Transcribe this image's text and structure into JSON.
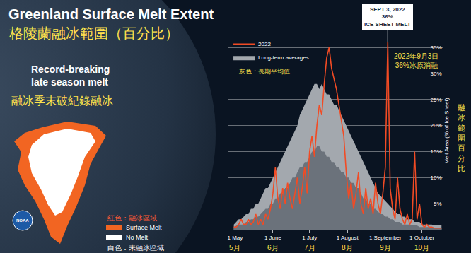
{
  "chart_data": {
    "type": "line",
    "title": "Greenland Surface Melt Extent",
    "subtitle": "格陵蘭融冰範圍（百分比）",
    "headline": [
      "Record-breaking",
      "late season melt"
    ],
    "headline_zh": "融冰季末破紀錄融冰",
    "y_label": "Melt Area (% of Ice Sheet)",
    "y_label_zh": "融冰範圍百分比",
    "legend_note": "灰色：長期平均值",
    "callout": {
      "x": 246,
      "y": 36,
      "lines": [
        "SEPT 3, 2022",
        "36%",
        "ICE SHEET MELT"
      ]
    },
    "callout_zh": {
      "x": 269,
      "y": 32.4,
      "lines": [
        "2022年9月3日",
        "36%冰原消融"
      ]
    },
    "x": [
      120,
      122,
      124,
      126,
      128,
      130,
      132,
      134,
      136,
      138,
      140,
      142,
      144,
      146,
      148,
      150,
      152,
      154,
      156,
      158,
      160,
      162,
      164,
      166,
      168,
      170,
      172,
      174,
      176,
      178,
      180,
      182,
      184,
      186,
      188,
      190,
      192,
      194,
      196,
      198,
      200,
      202,
      204,
      206,
      208,
      210,
      212,
      214,
      216,
      218,
      220,
      222,
      224,
      226,
      228,
      230,
      232,
      234,
      236,
      238,
      240,
      242,
      244,
      246,
      248,
      250,
      252,
      254,
      256,
      258,
      260,
      262,
      264,
      266,
      268,
      270,
      272,
      274,
      276,
      278,
      280,
      282,
      284,
      286,
      288,
      290
    ],
    "series": [
      {
        "name": "2022",
        "color": "#f24b24",
        "type": "line",
        "values": [
          0.5,
          0.5,
          1,
          2,
          1,
          1,
          2,
          1,
          1.5,
          3,
          1,
          2,
          1,
          3,
          2,
          4,
          7,
          12,
          6,
          4,
          8,
          5,
          9,
          6,
          4,
          7,
          10,
          5,
          8,
          12,
          7,
          15,
          18,
          14,
          20,
          24,
          22,
          28,
          33,
          35,
          31,
          29,
          27,
          24,
          21,
          18,
          11,
          6,
          9,
          4,
          7,
          11,
          5,
          3,
          8,
          4,
          6,
          3,
          9,
          5,
          3,
          7,
          12,
          36,
          8,
          4,
          2,
          10,
          4,
          2,
          1,
          3,
          1,
          2,
          15,
          2,
          5,
          1,
          0.5,
          1,
          0.5,
          0.5,
          0.3,
          0.3,
          0.3,
          0.3
        ]
      },
      {
        "name": "Long-term averages",
        "color": "#a3a8ae",
        "type": "area",
        "values": [
          1,
          1.5,
          2,
          2,
          2.5,
          3,
          3,
          4,
          4,
          5,
          5,
          6,
          7,
          8,
          8,
          9,
          10,
          11,
          12,
          13,
          14,
          15,
          16,
          17,
          18,
          19,
          20,
          22,
          23,
          24,
          25,
          26,
          27,
          28,
          28,
          27,
          28,
          27,
          26,
          26,
          25,
          24,
          24,
          23,
          22,
          21,
          20,
          19,
          18,
          17,
          16,
          15,
          14,
          13,
          12,
          11,
          10,
          9,
          8,
          7,
          6.5,
          6,
          5.5,
          5,
          4.5,
          4,
          3.5,
          3,
          3,
          2.5,
          2.5,
          2,
          2,
          2,
          1.5,
          1.5,
          1.5,
          1,
          1,
          1,
          1,
          1,
          0.8,
          0.8,
          0.8,
          0.8
        ]
      },
      {
        "color": "#6b727b",
        "type": "area",
        "values": [
          0.5,
          0.7,
          1,
          1,
          1,
          1.5,
          1.5,
          2,
          2,
          2.5,
          2.5,
          3,
          3.5,
          4,
          4,
          5,
          5,
          6,
          6,
          7,
          7,
          8,
          8,
          9,
          10,
          10,
          11,
          12,
          12,
          13,
          13,
          14,
          15,
          15,
          16,
          16,
          15,
          15,
          14,
          14,
          13,
          13,
          12,
          12,
          11,
          11,
          10,
          10,
          9,
          9,
          8,
          8,
          7,
          6,
          6,
          5,
          5,
          4,
          4,
          3.5,
          3,
          3,
          2.5,
          2.5,
          2,
          2,
          1.5,
          1.5,
          1.5,
          1,
          1,
          1,
          1,
          0.8,
          0.8,
          0.8,
          0.5,
          0.5,
          0.5,
          0.5,
          0.5,
          0.5,
          0.3,
          0.3,
          0.3,
          0.3
        ]
      }
    ],
    "xlim": [
      115,
      291
    ],
    "xticks": [
      {
        "value": 121,
        "label": "1 May"
      },
      {
        "value": 152,
        "label": "1 June"
      },
      {
        "value": 182,
        "label": "1 July"
      },
      {
        "value": 213,
        "label": "1 August"
      },
      {
        "value": 244,
        "label": "1 September"
      },
      {
        "value": 274,
        "label": "1 October"
      }
    ],
    "x_labels_zh": [
      "5月",
      "6月",
      "7月",
      "8月",
      "9月",
      "10月"
    ],
    "ylim": [
      0,
      38
    ],
    "yticks": [
      {
        "value": 5,
        "label": "5%"
      },
      {
        "value": 10,
        "label": "10%"
      },
      {
        "value": 15,
        "label": "15%"
      },
      {
        "value": 20,
        "label": "20%"
      },
      {
        "value": 25,
        "label": "25%"
      },
      {
        "value": 30,
        "label": "30%"
      },
      {
        "value": 35,
        "label": "35%"
      }
    ],
    "grid": true,
    "legend": "upper left",
    "map_legend": {
      "note_zh": "紅色：融冰區域",
      "items": [
        {
          "label": "Surface Melt",
          "color": "#f26522"
        },
        {
          "label": "No Melt",
          "color": "#ffffff"
        }
      ],
      "note2_zh": "白色：未融冰區域"
    },
    "logo": "NOAA"
  }
}
